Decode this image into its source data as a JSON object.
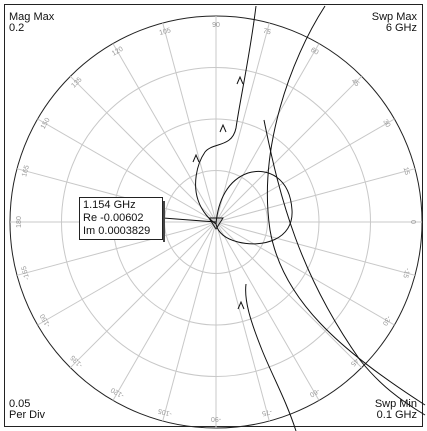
{
  "header": {
    "mag_max_label": "Mag Max",
    "mag_max_value": "0.2",
    "swp_max_label": "Swp Max",
    "swp_max_value": "6 GHz"
  },
  "footer": {
    "scale_value": "0.05",
    "scale_unit": "Per Div",
    "swp_min_label": "Swp Min",
    "swp_min_value": "0.1 GHz"
  },
  "marker": {
    "frequency": "1.154 GHz",
    "real": "Re -0.00602",
    "imag": "Im 0.0003829"
  },
  "chart_data": {
    "type": "polar",
    "radial_max": 0.2,
    "radial_per_div": 0.05,
    "angle_tick_step_deg": 15,
    "angle_labels": [
      "0",
      "15",
      "30",
      "45",
      "60",
      "75",
      "90",
      "105",
      "120",
      "135",
      "150",
      "165",
      "180",
      "-165",
      "-150",
      "-135",
      "-120",
      "-105",
      "-90",
      "-75",
      "-60",
      "-45",
      "-30",
      "-15"
    ],
    "sweep_range_ghz": [
      0.1,
      6
    ],
    "marker_point": {
      "freq_ghz": 1.154,
      "re": -0.00602,
      "im": 0.0003829
    }
  },
  "colors": {
    "grid": "#c8c8c8",
    "trace": "#111111",
    "text": "#111111"
  }
}
